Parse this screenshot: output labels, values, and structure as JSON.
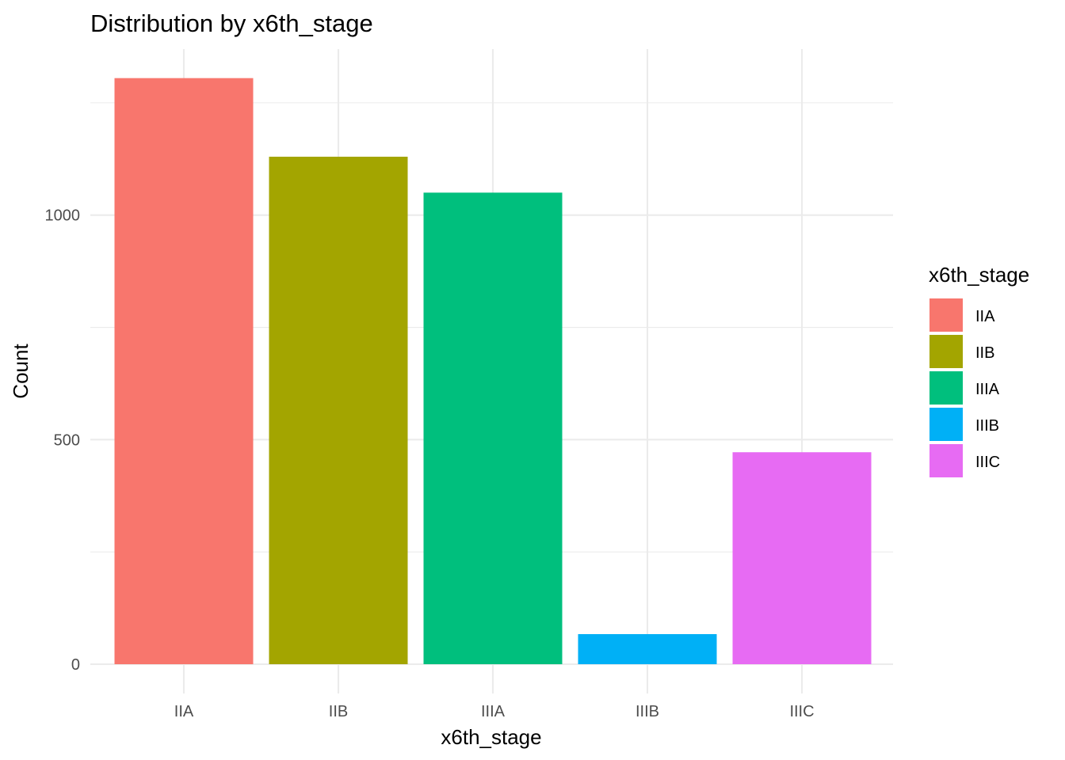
{
  "chart_data": {
    "type": "bar",
    "title": "Distribution by x6th_stage",
    "xlabel": "x6th_stage",
    "ylabel": "Count",
    "categories": [
      "IIA",
      "IIB",
      "IIIA",
      "IIIB",
      "IIIC"
    ],
    "values": [
      1305,
      1130,
      1050,
      67,
      472
    ],
    "colors": [
      "#F8766D",
      "#A3A500",
      "#00BF7D",
      "#00B0F6",
      "#E76BF3"
    ],
    "ylim": [
      0,
      1305
    ],
    "y_ticks": [
      0,
      500,
      1000
    ],
    "y_minor_ticks": [
      250,
      750,
      1250
    ],
    "grid": true,
    "legend": {
      "title": "x6th_stage",
      "position": "right",
      "entries": [
        "IIA",
        "IIB",
        "IIIA",
        "IIIB",
        "IIIC"
      ]
    }
  }
}
